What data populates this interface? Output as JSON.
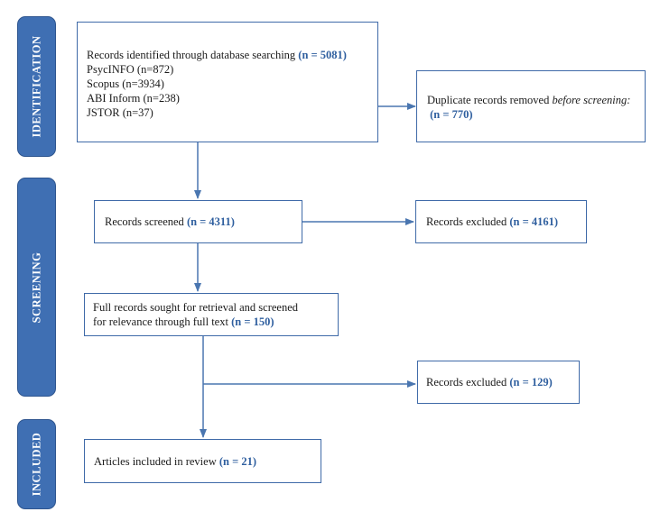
{
  "phases": {
    "identification": "IDENTIFICATION",
    "screening": "SCREENING",
    "included": "INCLUDED"
  },
  "boxes": {
    "identified": {
      "label": "Records identified through database searching",
      "count": "(n = 5081)",
      "sources": [
        "PsycINFO (n=872)",
        "Scopus (n=3934)",
        "ABI Inform (n=238)",
        "JSTOR (n=37)"
      ]
    },
    "duplicates": {
      "label": "Duplicate records removed",
      "label_italic": "before screening:",
      "count": "(n = 770)"
    },
    "screened": {
      "label": "Records screened",
      "count": "(n = 4311)"
    },
    "excluded_screen": {
      "label": "Records excluded",
      "count": "(n = 4161)"
    },
    "full_records": {
      "label_line1": "Full records sought for retrieval and screened",
      "label_line2": "for relevance through full text",
      "count": "(n = 150)"
    },
    "excluded_full": {
      "label": "Records excluded",
      "count": "(n = 129)"
    },
    "included": {
      "label": "Articles included in review",
      "count": "(n = 21)"
    }
  },
  "colors": {
    "phase_fill": "#3f6fb3",
    "box_border": "#3f6aa8",
    "count_text": "#2f5f9f",
    "arrow": "#4a76b0"
  }
}
